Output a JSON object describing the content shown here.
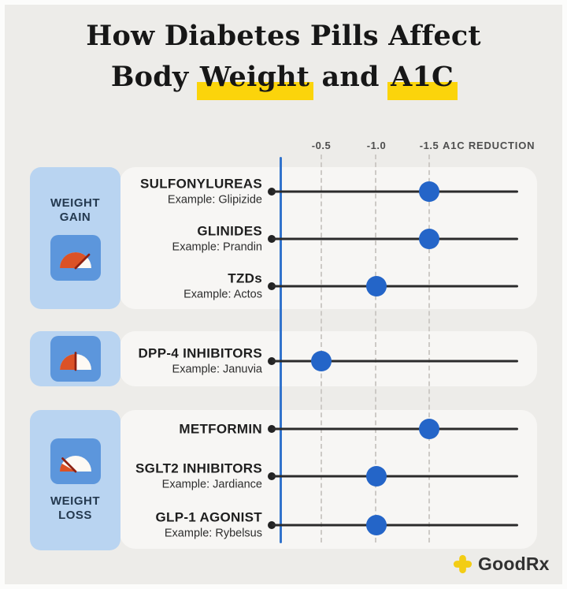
{
  "title": {
    "line1": "How Diabetes Pills Affect",
    "line2": {
      "pre": "Body",
      "highlight1": "Weight",
      "mid": "and",
      "highlight2": "A1C"
    }
  },
  "axis": {
    "ticks": [
      "-0.5",
      "-1.0",
      "-1.5"
    ],
    "title": "A1C REDUCTION"
  },
  "chart_data": {
    "type": "scatter",
    "title": "How Diabetes Pills Affect Body Weight and A1C",
    "xlabel": "A1C REDUCTION",
    "x_ticks": [
      -0.5,
      -1.0,
      -1.5
    ],
    "x_range": [
      0,
      -1.5
    ],
    "grid": "dashed vertical gridlines at each tick, solid blue zero axis",
    "legend_position": "none",
    "groups": [
      {
        "badge": "WEIGHT GAIN",
        "icon": "gauge-needle-right-icon",
        "rows": [
          {
            "drug": "SULFONYLUREAS",
            "example": "Example: Glipizide",
            "a1c_reduction": -1.5
          },
          {
            "drug": "GLINIDES",
            "example": "Example: Prandin",
            "a1c_reduction": -1.5
          },
          {
            "drug": "TZDs",
            "example": "Example: Actos",
            "a1c_reduction": -1.0
          }
        ]
      },
      {
        "badge": "",
        "icon": "gauge-needle-center-icon",
        "rows": [
          {
            "drug": "DPP-4 INHIBITORS",
            "example": "Example: Januvia",
            "a1c_reduction": -0.5
          }
        ]
      },
      {
        "badge": "WEIGHT LOSS",
        "icon": "gauge-needle-left-icon",
        "rows": [
          {
            "drug": "METFORMIN",
            "example": "",
            "a1c_reduction": -1.5
          },
          {
            "drug": "SGLT2 INHIBITORS",
            "example": "Example: Jardiance",
            "a1c_reduction": -1.0
          },
          {
            "drug": "GLP-1 AGONIST",
            "example": "Example: Rybelsus",
            "a1c_reduction": -1.0
          }
        ]
      }
    ]
  },
  "footer": {
    "brand": "GoodRx",
    "logo": "plus-icon"
  },
  "colors": {
    "background": "#EDECE9",
    "panel": "#F7F6F4",
    "badge_blue": "#B9D4F1",
    "icon_blue": "#5C96DC",
    "dot_blue": "#2465C8",
    "axis_blue": "#3273CC",
    "highlight_yellow": "#FBD40B",
    "gauge_orange": "#DB5226",
    "needle_red": "#8E2112",
    "logo_yellow": "#F3CD15"
  }
}
